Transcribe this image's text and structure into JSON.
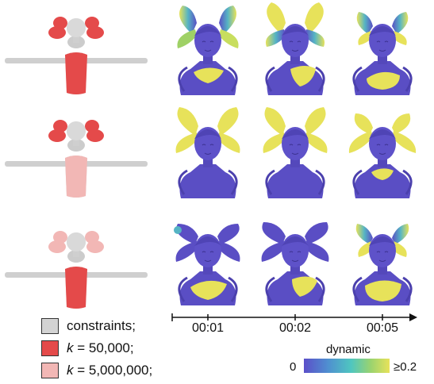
{
  "legend": {
    "items": [
      {
        "label": "constraints;",
        "color": "#d3d3d3"
      },
      {
        "label_pre": "k",
        "label_post": " = 50,000;",
        "color": "#e44a4a"
      },
      {
        "label_pre": "k",
        "label_post": " = 5,000,000;",
        "color": "#f2b7b5"
      }
    ]
  },
  "timeline": {
    "ticks": [
      "00:01",
      "00:02",
      "00:05"
    ]
  },
  "colorbar": {
    "title": "dynamic",
    "min_label": "0",
    "max_label": "≥0.2",
    "stops": [
      "#5b4fc9",
      "#4f8fd0",
      "#4fc6c0",
      "#9ad36f",
      "#e8e25a"
    ]
  },
  "colors": {
    "purple_body": "#5a4ec4",
    "yellow_high": "#e7e25a",
    "gray_constraint": "#d6d6d6",
    "red": "#e44a4a",
    "pink": "#f2b7b5"
  }
}
